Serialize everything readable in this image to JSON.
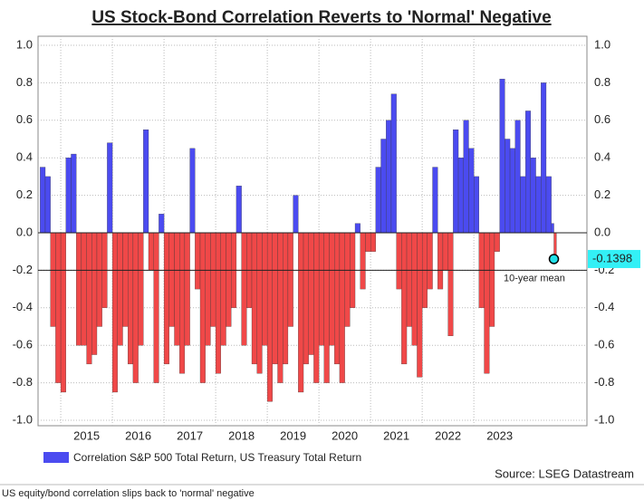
{
  "chart_data": {
    "type": "bar",
    "title": "US Stock-Bond Correlation Reverts to 'Normal' Negative",
    "source": "Source: LSEG Datastream",
    "caption": "US equity/bond correlation slips back to 'normal' negative",
    "x": [
      2014.6,
      2014.7,
      2014.8,
      2014.9,
      2015.0,
      2015.1,
      2015.2,
      2015.3,
      2015.4,
      2015.5,
      2015.6,
      2015.7,
      2015.8,
      2015.9,
      2016.0,
      2016.1,
      2016.2,
      2016.3,
      2016.4,
      2016.5,
      2016.6,
      2016.7,
      2016.8,
      2016.9,
      2017.0,
      2017.1,
      2017.2,
      2017.3,
      2017.4,
      2017.5,
      2017.6,
      2017.7,
      2017.8,
      2017.9,
      2018.0,
      2018.1,
      2018.2,
      2018.3,
      2018.4,
      2018.5,
      2018.6,
      2018.7,
      2018.8,
      2018.9,
      2019.0,
      2019.1,
      2019.2,
      2019.3,
      2019.4,
      2019.5,
      2019.6,
      2019.7,
      2019.8,
      2019.9,
      2020.0,
      2020.1,
      2020.2,
      2020.3,
      2020.4,
      2020.5,
      2020.6,
      2020.7,
      2020.8,
      2020.9,
      2021.0,
      2021.1,
      2021.2,
      2021.3,
      2021.4,
      2021.5,
      2021.6,
      2021.7,
      2021.8,
      2021.9,
      2022.0,
      2022.1,
      2022.2,
      2022.3,
      2022.4,
      2022.5,
      2022.6,
      2022.7,
      2022.8,
      2022.9,
      2023.0,
      2023.1,
      2023.2,
      2023.3,
      2023.4,
      2023.5,
      2023.6,
      2023.7,
      2023.8,
      2023.9,
      2024.0,
      2024.1,
      2024.2,
      2024.3,
      2024.4,
      2024.5,
      2024.55
    ],
    "series": [
      {
        "name": "Correlation S&P 500 Total Return, US Treasury Total Return",
        "color": "#4b4bf0",
        "negative_color": "#f04848",
        "values": [
          0.35,
          0.3,
          -0.5,
          -0.8,
          -0.85,
          0.4,
          0.42,
          -0.6,
          -0.6,
          -0.7,
          -0.65,
          -0.5,
          -0.4,
          0.48,
          -0.85,
          -0.6,
          -0.5,
          -0.7,
          -0.8,
          -0.6,
          0.55,
          -0.2,
          -0.8,
          0.1,
          -0.7,
          -0.5,
          -0.6,
          -0.75,
          -0.6,
          0.45,
          -0.3,
          -0.8,
          -0.6,
          -0.5,
          -0.75,
          -0.6,
          -0.5,
          -0.4,
          0.25,
          -0.6,
          -0.4,
          -0.7,
          -0.75,
          -0.6,
          -0.9,
          -0.7,
          -0.8,
          -0.7,
          -0.5,
          0.2,
          -0.85,
          -0.7,
          -0.65,
          -0.8,
          -0.6,
          -0.8,
          -0.6,
          -0.7,
          -0.8,
          -0.5,
          -0.4,
          0.05,
          -0.3,
          -0.1,
          -0.1,
          0.35,
          0.5,
          0.6,
          0.74,
          -0.3,
          -0.7,
          -0.5,
          -0.6,
          -0.77,
          -0.4,
          -0.3,
          0.35,
          -0.3,
          -0.2,
          -0.55,
          0.55,
          0.4,
          0.6,
          0.45,
          0.3,
          -0.4,
          -0.75,
          -0.5,
          -0.1,
          0.82,
          0.5,
          0.45,
          0.6,
          0.3,
          0.65,
          0.4,
          0.3,
          0.8,
          0.3,
          0.05,
          -0.1398
        ]
      }
    ],
    "mean_line": {
      "value": -0.2,
      "label": "10-year mean"
    },
    "xlim": [
      2014.56,
      2025.19
    ],
    "xticks": [
      2015,
      2016,
      2017,
      2018,
      2019,
      2020,
      2021,
      2022,
      2023
    ],
    "ylim": [
      -1,
      1
    ],
    "yticks": [
      {
        "value": 1,
        "label": "1.0"
      },
      {
        "value": 0.8,
        "label": "0.8"
      },
      {
        "value": 0.6,
        "label": "0.6"
      },
      {
        "value": 0.4,
        "label": "0.4"
      },
      {
        "value": 0.2,
        "label": "0.2"
      },
      {
        "value": 0,
        "label": "0.0"
      },
      {
        "value": -0.2,
        "label": "-0.2"
      },
      {
        "value": -0.4,
        "label": "-0.4"
      },
      {
        "value": -0.6,
        "label": "-0.6"
      },
      {
        "value": -0.8,
        "label": "-0.8"
      },
      {
        "value": -1,
        "label": "-1.0"
      }
    ],
    "grid": true
  }
}
